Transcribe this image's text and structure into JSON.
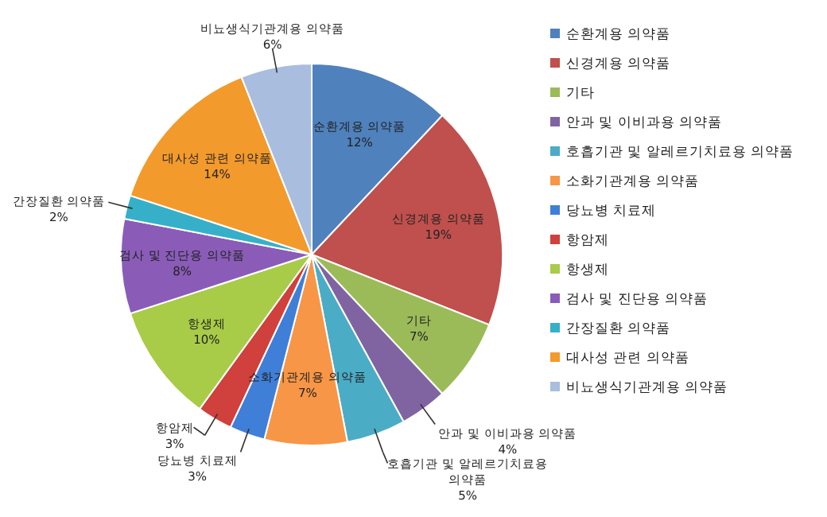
{
  "chart_data": {
    "type": "pie",
    "categories": [
      "순환계용 의약품",
      "신경계용 의약품",
      "기타",
      "안과 및 이비과용 의약품",
      "호흡기관 및 알레르기치료용 의약품",
      "소화기관계용 의약품",
      "당뇨병 치료제",
      "항암제",
      "항생제",
      "검사 및 진단용 의약품",
      "간장질환 의약품",
      "대사성 관련 의약품",
      "비뇨생식기관계용 의약품"
    ],
    "values": [
      12,
      19,
      7,
      4,
      5,
      7,
      3,
      3,
      10,
      8,
      2,
      14,
      6
    ],
    "colors": [
      "#4f81bd",
      "#c0504d",
      "#9bbb59",
      "#8064a2",
      "#4bacc6",
      "#f79646",
      "#3f7fd8",
      "#d0403c",
      "#a8cc48",
      "#8a5cb8",
      "#36b0c8",
      "#f39a2c",
      "#a9bddf"
    ],
    "value_labels": [
      "12%",
      "19%",
      "7%",
      "4%",
      "5%",
      "7%",
      "3%",
      "3%",
      "10%",
      "8%",
      "2%",
      "14%",
      "6%"
    ],
    "legend": "right"
  }
}
